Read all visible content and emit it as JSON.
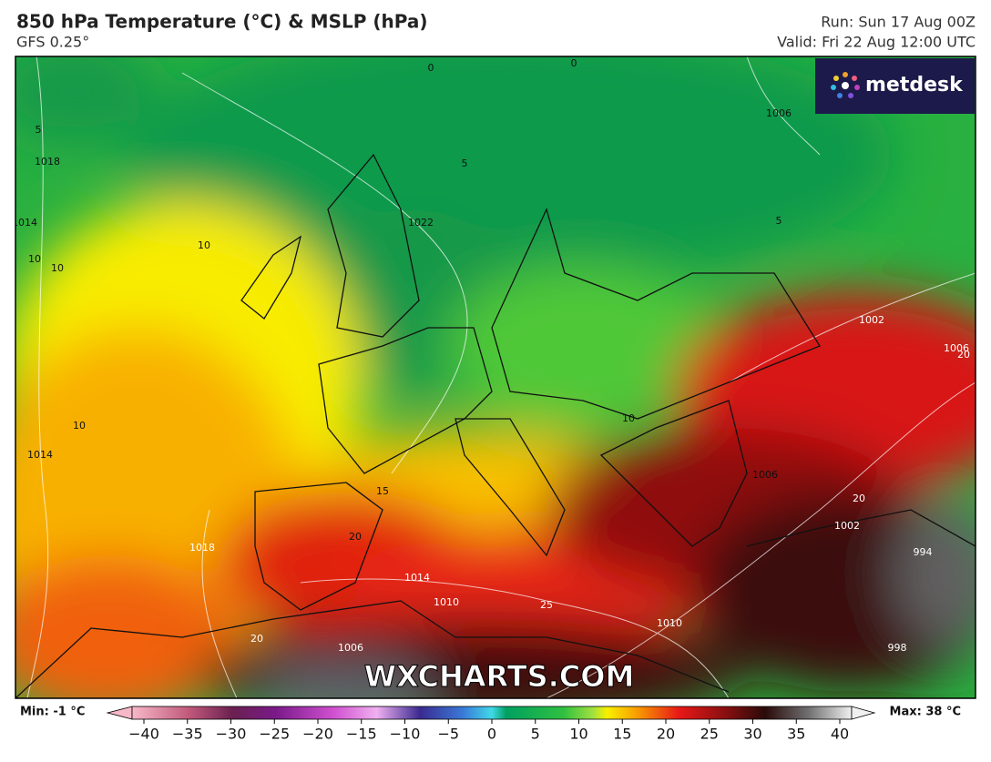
{
  "header": {
    "title": "850 hPa Temperature (°C) & MSLP (hPa)",
    "model": "GFS 0.25°",
    "run": "Run: Sun 17 Aug 00Z",
    "valid": "Valid: Fri 22 Aug 12:00 UTC"
  },
  "logo": "metdesk",
  "watermark": "WXCHARTS.COM",
  "map": {
    "contour_labels": [
      "0",
      "0",
      "5",
      "5",
      "5",
      "1018",
      "1014",
      "1014",
      "1022",
      "1006",
      "10",
      "10",
      "10",
      "10",
      "10",
      "15",
      "20",
      "20",
      "20",
      "20",
      "1018",
      "1014",
      "1010",
      "1010",
      "25",
      "1006",
      "1006",
      "1002",
      "1002",
      "994",
      "998",
      "1006"
    ]
  },
  "colorbar": {
    "min_label": "Min: -1 °C",
    "max_label": "Max: 38 °C",
    "range": [
      -40,
      40
    ],
    "ticks": [
      {
        "value": -40,
        "label": "−40"
      },
      {
        "value": -35,
        "label": "−35"
      },
      {
        "value": -30,
        "label": "−30"
      },
      {
        "value": -25,
        "label": "−25"
      },
      {
        "value": -20,
        "label": "−20"
      },
      {
        "value": -15,
        "label": "−15"
      },
      {
        "value": -10,
        "label": "−10"
      },
      {
        "value": -5,
        "label": "−5"
      },
      0,
      5,
      10,
      15,
      20,
      25,
      30,
      35,
      40
    ]
  }
}
